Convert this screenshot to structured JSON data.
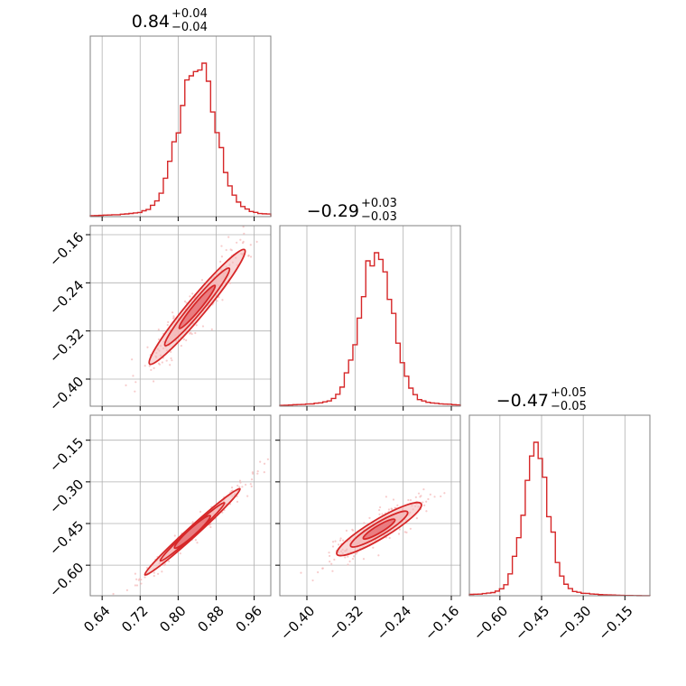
{
  "chart_data": {
    "type": "corner",
    "colors": {
      "series": "#d62728",
      "fill": "#f4b6b7",
      "fill_dark": "#e8767a",
      "grid": "#b0b0b0",
      "frame": "#808080"
    },
    "parameters": [
      {
        "median": "0.84",
        "plus": "+0.04",
        "minus": "−0.04",
        "range": [
          0.615,
          0.995
        ],
        "ticks": [
          0.64,
          0.72,
          0.8,
          0.88,
          0.96
        ],
        "tick_labels": [
          "0.64",
          "0.72",
          "0.80",
          "0.88",
          "0.96"
        ],
        "hist_center": 0.84,
        "hist_sigma": 0.038
      },
      {
        "median": "−0.29",
        "plus": "+0.03",
        "minus": "−0.03",
        "range": [
          -0.445,
          -0.145
        ],
        "ticks": [
          -0.4,
          -0.32,
          -0.24,
          -0.16
        ],
        "tick_labels": [
          "−0.40",
          "−0.32",
          "−0.24",
          "−0.16"
        ],
        "hist_center": -0.285,
        "hist_sigma": 0.026
      },
      {
        "median": "−0.47",
        "plus": "+0.05",
        "minus": "−0.05",
        "range": [
          -0.71,
          -0.06
        ],
        "ticks": [
          -0.6,
          -0.45,
          -0.3,
          -0.15
        ],
        "tick_labels": [
          "−0.60",
          "−0.45",
          "−0.30",
          "−0.15"
        ],
        "hist_center": -0.47,
        "hist_sigma": 0.045
      }
    ],
    "pairs": [
      {
        "row": 1,
        "col": 0,
        "center": [
          0.84,
          -0.28
        ],
        "slope": 0.95,
        "spread": [
          0.05,
          0.012
        ]
      },
      {
        "row": 2,
        "col": 0,
        "center": [
          0.83,
          -0.48
        ],
        "slope": 1.55,
        "spread": [
          0.05,
          0.012
        ]
      },
      {
        "row": 2,
        "col": 1,
        "center": [
          -0.28,
          -0.47
        ],
        "slope": 1.3,
        "spread": [
          0.035,
          0.02
        ]
      }
    ]
  }
}
